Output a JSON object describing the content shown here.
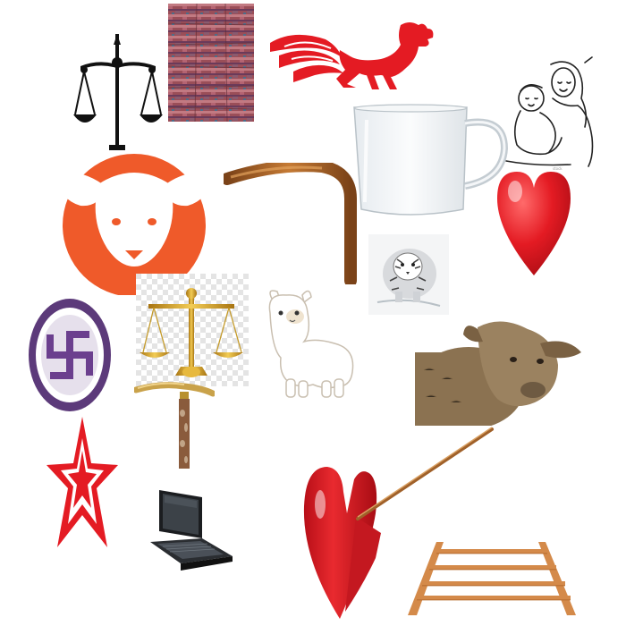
{
  "items": [
    {
      "icon": "balance-scale-icon"
    },
    {
      "icon": "textile-stack-photo"
    },
    {
      "icon": "rooster-icon"
    },
    {
      "icon": "mother-child-sketch"
    },
    {
      "icon": "glass-measuring-jug"
    },
    {
      "icon": "sheep-face-logo"
    },
    {
      "icon": "wooden-walking-cane"
    },
    {
      "icon": "red-heart-icon"
    },
    {
      "icon": "tiger-sketch"
    },
    {
      "icon": "swastika-emblem"
    },
    {
      "icon": "gold-scale-icon"
    },
    {
      "icon": "alpaca-cartoon"
    },
    {
      "icon": "sheep-photo"
    },
    {
      "icon": "ornate-cane"
    },
    {
      "icon": "red-star-icon"
    },
    {
      "icon": "rack-console-photo"
    },
    {
      "icon": "heart-with-stick-icon"
    },
    {
      "icon": "railroad-track-icon"
    }
  ],
  "colors": {
    "red": "#e41b23",
    "orange": "#ef5a2a",
    "purple": "#5c3a7a",
    "gold": "#d9a52b",
    "wood": "#a0612a"
  }
}
